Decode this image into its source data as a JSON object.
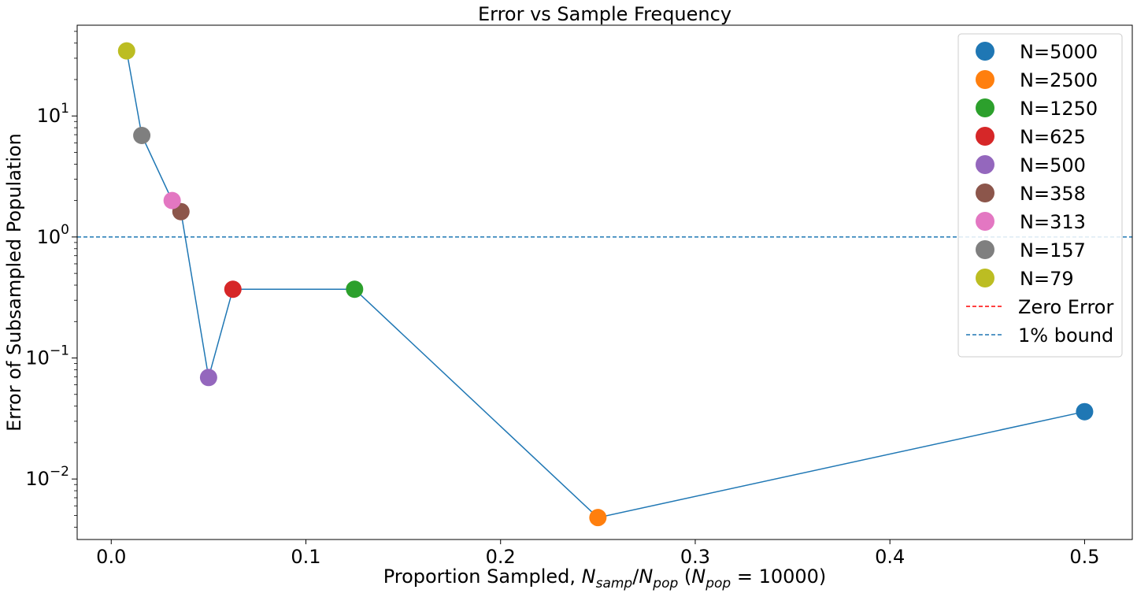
{
  "chart_data": {
    "type": "scatter",
    "title": "Error vs Sample Frequency",
    "xlabel": {
      "prefix": "Proportion Sampled, ",
      "num": "N",
      "num_sub": "samp",
      "slash": "/",
      "den": "N",
      "den_sub": "pop",
      "paren_open": " (",
      "eqvar": "N",
      "eqvar_sub": "pop",
      "eq": " = 10000",
      "paren_close": ")"
    },
    "ylabel": "Error of Subsampled Population",
    "xlim": [
      -0.0175,
      0.5245
    ],
    "ylim_log10": [
      -2.5,
      1.75
    ],
    "yscale": "log",
    "x_ticks": [
      {
        "value": 0.0,
        "label": "0.0"
      },
      {
        "value": 0.1,
        "label": "0.1"
      },
      {
        "value": 0.2,
        "label": "0.2"
      },
      {
        "value": 0.3,
        "label": "0.3"
      },
      {
        "value": 0.4,
        "label": "0.4"
      },
      {
        "value": 0.5,
        "label": "0.5"
      }
    ],
    "y_ticks": [
      {
        "exp": -2,
        "base": "10",
        "sup": "−2"
      },
      {
        "exp": -1,
        "base": "10",
        "sup": "−1"
      },
      {
        "exp": 0,
        "base": "10",
        "sup": "0"
      },
      {
        "exp": 1,
        "base": "10",
        "sup": "1"
      }
    ],
    "series": [
      {
        "name": "N=5000",
        "x": 0.5,
        "y": 0.036,
        "color": "#1f77b4"
      },
      {
        "name": "N=2500",
        "x": 0.25,
        "y": 0.0048,
        "color": "#ff7f0e"
      },
      {
        "name": "N=1250",
        "x": 0.125,
        "y": 0.37,
        "color": "#2ca02c"
      },
      {
        "name": "N=625",
        "x": 0.0625,
        "y": 0.37,
        "color": "#d62728"
      },
      {
        "name": "N=500",
        "x": 0.05,
        "y": 0.069,
        "color": "#9467bd"
      },
      {
        "name": "N=358",
        "x": 0.0358,
        "y": 1.62,
        "color": "#8c564b"
      },
      {
        "name": "N=313",
        "x": 0.0313,
        "y": 2.0,
        "color": "#e377c2"
      },
      {
        "name": "N=157",
        "x": 0.0157,
        "y": 6.9,
        "color": "#7f7f7f"
      },
      {
        "name": "N=79",
        "x": 0.0079,
        "y": 34.5,
        "color": "#bcbd22"
      }
    ],
    "line_color": "#1f77b4",
    "reference_lines": [
      {
        "name": "Zero Error",
        "y": 0,
        "color": "#ff0000",
        "style": "dashed"
      },
      {
        "name": "1% bound",
        "y": 1.0,
        "color": "#1f77b4",
        "style": "dashed"
      }
    ],
    "legend_position": "upper right",
    "grid": false
  }
}
